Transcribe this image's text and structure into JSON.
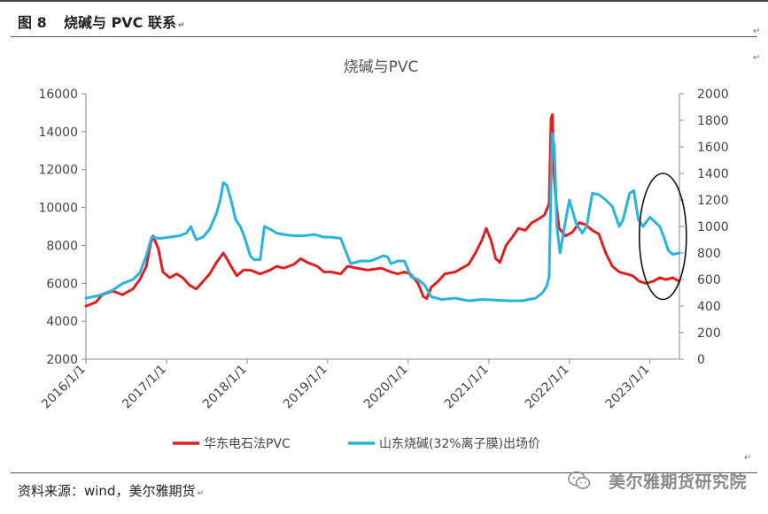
{
  "header": {
    "figure_number": "图 8",
    "figure_title": "烧碱与 PVC 联系"
  },
  "footer": {
    "source": "资料来源：wind，美尔雅期货",
    "brand": "美尔雅期货研究院",
    "brand_icon": "wechat-icon"
  },
  "chart_data": {
    "type": "line",
    "title": "烧碱与PVC",
    "x_tick_labels": [
      "2016/1/1",
      "2017/1/1",
      "2018/1/1",
      "2019/1/1",
      "2020/1/1",
      "2021/1/1",
      "2022/1/1",
      "2023/1/1"
    ],
    "x_range": [
      "2016-01-01",
      "2023-05-15"
    ],
    "y_left": {
      "ticks": [
        2000,
        4000,
        6000,
        8000,
        10000,
        12000,
        14000,
        16000
      ],
      "range": [
        2000,
        16000
      ]
    },
    "y_right": {
      "ticks": [
        0,
        200,
        400,
        600,
        800,
        1000,
        1200,
        1400,
        1600,
        1800,
        2000
      ],
      "range": [
        0,
        2000
      ]
    },
    "grid": false,
    "legend_position": "bottom",
    "annotation": "black ellipse highlighting the most recent period (early 2023) on the right",
    "series": [
      {
        "name": "华东电石法PVC",
        "axis": "left",
        "color": "#e02020",
        "points": [
          [
            "2016-01-01",
            4800
          ],
          [
            "2016-02-15",
            5000
          ],
          [
            "2016-03-15",
            5400
          ],
          [
            "2016-05-01",
            5600
          ],
          [
            "2016-06-15",
            5400
          ],
          [
            "2016-08-01",
            5700
          ],
          [
            "2016-09-01",
            6200
          ],
          [
            "2016-10-01",
            6900
          ],
          [
            "2016-10-20",
            8100
          ],
          [
            "2016-11-01",
            8500
          ],
          [
            "2016-11-25",
            7800
          ],
          [
            "2016-12-15",
            6600
          ],
          [
            "2017-01-15",
            6300
          ],
          [
            "2017-02-15",
            6500
          ],
          [
            "2017-03-15",
            6300
          ],
          [
            "2017-04-15",
            5900
          ],
          [
            "2017-05-15",
            5700
          ],
          [
            "2017-06-15",
            6100
          ],
          [
            "2017-07-15",
            6500
          ],
          [
            "2017-08-15",
            7100
          ],
          [
            "2017-09-15",
            7600
          ],
          [
            "2017-10-01",
            7300
          ],
          [
            "2017-10-20",
            6900
          ],
          [
            "2017-11-15",
            6400
          ],
          [
            "2017-12-15",
            6700
          ],
          [
            "2018-01-15",
            6700
          ],
          [
            "2018-03-01",
            6500
          ],
          [
            "2018-04-15",
            6700
          ],
          [
            "2018-05-15",
            6900
          ],
          [
            "2018-06-15",
            6800
          ],
          [
            "2018-08-01",
            7000
          ],
          [
            "2018-09-01",
            7300
          ],
          [
            "2018-10-01",
            7100
          ],
          [
            "2018-11-15",
            6900
          ],
          [
            "2018-12-15",
            6600
          ],
          [
            "2019-01-15",
            6600
          ],
          [
            "2019-03-01",
            6500
          ],
          [
            "2019-04-01",
            6900
          ],
          [
            "2019-05-15",
            6800
          ],
          [
            "2019-07-01",
            6700
          ],
          [
            "2019-09-01",
            6800
          ],
          [
            "2019-10-15",
            6600
          ],
          [
            "2019-11-15",
            6500
          ],
          [
            "2019-12-15",
            6600
          ],
          [
            "2020-01-10",
            6500
          ],
          [
            "2020-02-15",
            6000
          ],
          [
            "2020-03-10",
            5300
          ],
          [
            "2020-03-25",
            5200
          ],
          [
            "2020-04-15",
            5800
          ],
          [
            "2020-05-15",
            6100
          ],
          [
            "2020-06-15",
            6500
          ],
          [
            "2020-08-01",
            6600
          ],
          [
            "2020-09-01",
            6800
          ],
          [
            "2020-10-01",
            7000
          ],
          [
            "2020-11-01",
            7600
          ],
          [
            "2020-12-01",
            8300
          ],
          [
            "2020-12-20",
            8900
          ],
          [
            "2021-01-10",
            8300
          ],
          [
            "2021-02-01",
            7300
          ],
          [
            "2021-02-20",
            7100
          ],
          [
            "2021-03-20",
            8000
          ],
          [
            "2021-04-15",
            8400
          ],
          [
            "2021-05-15",
            8900
          ],
          [
            "2021-06-15",
            8800
          ],
          [
            "2021-07-15",
            9200
          ],
          [
            "2021-08-15",
            9400
          ],
          [
            "2021-09-10",
            9600
          ],
          [
            "2021-10-01",
            10200
          ],
          [
            "2021-10-10",
            14700
          ],
          [
            "2021-10-16",
            14900
          ],
          [
            "2021-10-22",
            12000
          ],
          [
            "2021-11-01",
            10400
          ],
          [
            "2021-11-15",
            8900
          ],
          [
            "2021-12-15",
            8500
          ],
          [
            "2022-01-15",
            8700
          ],
          [
            "2022-02-15",
            9200
          ],
          [
            "2022-03-15",
            9100
          ],
          [
            "2022-04-15",
            8800
          ],
          [
            "2022-05-15",
            8600
          ],
          [
            "2022-06-15",
            7600
          ],
          [
            "2022-07-15",
            6900
          ],
          [
            "2022-08-15",
            6600
          ],
          [
            "2022-09-15",
            6500
          ],
          [
            "2022-10-15",
            6400
          ],
          [
            "2022-11-15",
            6100
          ],
          [
            "2022-12-15",
            6000
          ],
          [
            "2023-01-15",
            6100
          ],
          [
            "2023-02-15",
            6300
          ],
          [
            "2023-03-15",
            6200
          ],
          [
            "2023-04-15",
            6300
          ],
          [
            "2023-05-15",
            6100
          ]
        ]
      },
      {
        "name": "山东烧碱(32%离子膜)出场价",
        "axis": "right",
        "color": "#27b4e0",
        "points": [
          [
            "2016-01-01",
            460
          ],
          [
            "2016-03-01",
            480
          ],
          [
            "2016-05-01",
            520
          ],
          [
            "2016-06-15",
            570
          ],
          [
            "2016-08-01",
            600
          ],
          [
            "2016-09-01",
            650
          ],
          [
            "2016-10-01",
            780
          ],
          [
            "2016-10-25",
            920
          ],
          [
            "2016-12-01",
            910
          ],
          [
            "2017-01-15",
            920
          ],
          [
            "2017-03-01",
            930
          ],
          [
            "2017-04-01",
            950
          ],
          [
            "2017-04-20",
            1000
          ],
          [
            "2017-05-15",
            900
          ],
          [
            "2017-06-15",
            920
          ],
          [
            "2017-07-15",
            980
          ],
          [
            "2017-08-15",
            1100
          ],
          [
            "2017-09-01",
            1200
          ],
          [
            "2017-09-15",
            1330
          ],
          [
            "2017-10-01",
            1310
          ],
          [
            "2017-10-20",
            1200
          ],
          [
            "2017-11-10",
            1050
          ],
          [
            "2017-12-01",
            1000
          ],
          [
            "2017-12-20",
            920
          ],
          [
            "2018-01-15",
            780
          ],
          [
            "2018-02-01",
            750
          ],
          [
            "2018-03-01",
            750
          ],
          [
            "2018-03-20",
            1000
          ],
          [
            "2018-04-15",
            980
          ],
          [
            "2018-05-15",
            950
          ],
          [
            "2018-06-15",
            940
          ],
          [
            "2018-08-01",
            930
          ],
          [
            "2018-09-15",
            930
          ],
          [
            "2018-11-01",
            940
          ],
          [
            "2018-12-15",
            920
          ],
          [
            "2019-01-15",
            920
          ],
          [
            "2019-03-01",
            910
          ],
          [
            "2019-04-15",
            720
          ],
          [
            "2019-06-01",
            740
          ],
          [
            "2019-07-15",
            740
          ],
          [
            "2019-08-15",
            760
          ],
          [
            "2019-09-10",
            780
          ],
          [
            "2019-09-30",
            770
          ],
          [
            "2019-10-15",
            720
          ],
          [
            "2019-11-15",
            740
          ],
          [
            "2019-12-15",
            740
          ],
          [
            "2020-01-15",
            620
          ],
          [
            "2020-02-15",
            600
          ],
          [
            "2020-03-15",
            560
          ],
          [
            "2020-04-15",
            470
          ],
          [
            "2020-06-01",
            450
          ],
          [
            "2020-08-01",
            460
          ],
          [
            "2020-10-01",
            440
          ],
          [
            "2020-12-01",
            450
          ],
          [
            "2021-02-01",
            445
          ],
          [
            "2021-04-01",
            440
          ],
          [
            "2021-06-01",
            440
          ],
          [
            "2021-08-01",
            460
          ],
          [
            "2021-09-01",
            500
          ],
          [
            "2021-09-20",
            550
          ],
          [
            "2021-10-01",
            620
          ],
          [
            "2021-10-15",
            1700
          ],
          [
            "2021-10-25",
            1600
          ],
          [
            "2021-11-05",
            1000
          ],
          [
            "2021-11-20",
            800
          ],
          [
            "2021-12-10",
            1000
          ],
          [
            "2022-01-01",
            1200
          ],
          [
            "2022-02-01",
            1020
          ],
          [
            "2022-03-01",
            950
          ],
          [
            "2022-03-20",
            1000
          ],
          [
            "2022-04-15",
            1250
          ],
          [
            "2022-05-15",
            1240
          ],
          [
            "2022-06-15",
            1200
          ],
          [
            "2022-07-15",
            1150
          ],
          [
            "2022-08-15",
            1000
          ],
          [
            "2022-09-01",
            1050
          ],
          [
            "2022-10-01",
            1250
          ],
          [
            "2022-10-20",
            1270
          ],
          [
            "2022-11-10",
            1050
          ],
          [
            "2022-12-01",
            1000
          ],
          [
            "2023-01-01",
            1070
          ],
          [
            "2023-01-20",
            1040
          ],
          [
            "2023-02-15",
            1000
          ],
          [
            "2023-03-10",
            900
          ],
          [
            "2023-03-25",
            820
          ],
          [
            "2023-04-15",
            790
          ],
          [
            "2023-05-15",
            800
          ]
        ]
      }
    ]
  }
}
